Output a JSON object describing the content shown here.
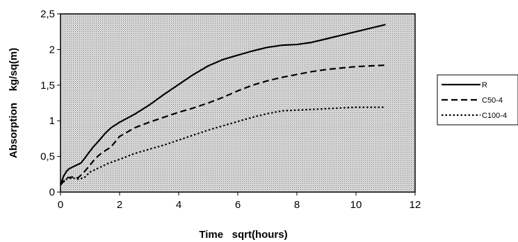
{
  "chart_data": {
    "type": "line",
    "title": "",
    "xlabel": "Time   sqrt(hours)",
    "ylabel": "Absorption    kg/sq(m)",
    "xlim": [
      0,
      12
    ],
    "ylim": [
      0,
      2.5
    ],
    "x_ticks": [
      "0",
      "2",
      "4",
      "6",
      "8",
      "10",
      "12"
    ],
    "y_ticks": [
      "0",
      "0,5",
      "1",
      "1,5",
      "2",
      "2,5"
    ],
    "plot_background": "#d0d0d0",
    "legend_position": "right",
    "series": [
      {
        "name": "R",
        "style": "solid",
        "x": [
          0,
          0.1,
          0.2,
          0.3,
          0.5,
          0.7,
          0.9,
          1.1,
          1.3,
          1.5,
          1.7,
          2.0,
          2.5,
          3.0,
          3.5,
          4.0,
          4.5,
          5.0,
          5.5,
          6.0,
          6.5,
          7.0,
          7.5,
          8.0,
          8.5,
          9.0,
          9.5,
          10.0,
          10.5,
          11.0
        ],
        "y": [
          0.1,
          0.22,
          0.29,
          0.33,
          0.37,
          0.41,
          0.52,
          0.63,
          0.72,
          0.82,
          0.9,
          0.98,
          1.09,
          1.22,
          1.37,
          1.51,
          1.65,
          1.77,
          1.86,
          1.92,
          1.98,
          2.03,
          2.06,
          2.07,
          2.1,
          2.15,
          2.2,
          2.25,
          2.3,
          2.35
        ]
      },
      {
        "name": "C50-4",
        "style": "dashed",
        "x": [
          0,
          0.2,
          0.4,
          0.6,
          0.8,
          1.0,
          1.2,
          1.4,
          1.7,
          2.0,
          2.5,
          3.0,
          3.5,
          4.0,
          4.5,
          5.0,
          5.5,
          6.0,
          6.5,
          7.0,
          7.5,
          8.0,
          8.5,
          9.0,
          9.5,
          10.0,
          10.5,
          11.0
        ],
        "y": [
          0.1,
          0.2,
          0.21,
          0.2,
          0.28,
          0.38,
          0.48,
          0.55,
          0.63,
          0.78,
          0.9,
          0.98,
          1.05,
          1.12,
          1.18,
          1.25,
          1.33,
          1.42,
          1.5,
          1.56,
          1.61,
          1.65,
          1.69,
          1.72,
          1.74,
          1.76,
          1.77,
          1.78
        ]
      },
      {
        "name": "C100-4",
        "style": "dotted",
        "x": [
          0,
          0.2,
          0.4,
          0.6,
          0.8,
          1.0,
          1.3,
          1.6,
          2.0,
          2.5,
          3.0,
          3.5,
          4.0,
          4.5,
          5.0,
          5.5,
          6.0,
          6.5,
          7.0,
          7.5,
          8.0,
          8.5,
          9.0,
          9.5,
          10.0,
          10.5,
          11.0
        ],
        "y": [
          0.1,
          0.18,
          0.2,
          0.18,
          0.2,
          0.28,
          0.34,
          0.4,
          0.46,
          0.54,
          0.6,
          0.66,
          0.73,
          0.8,
          0.87,
          0.93,
          0.99,
          1.05,
          1.1,
          1.14,
          1.15,
          1.16,
          1.17,
          1.18,
          1.19,
          1.19,
          1.19
        ]
      }
    ]
  }
}
